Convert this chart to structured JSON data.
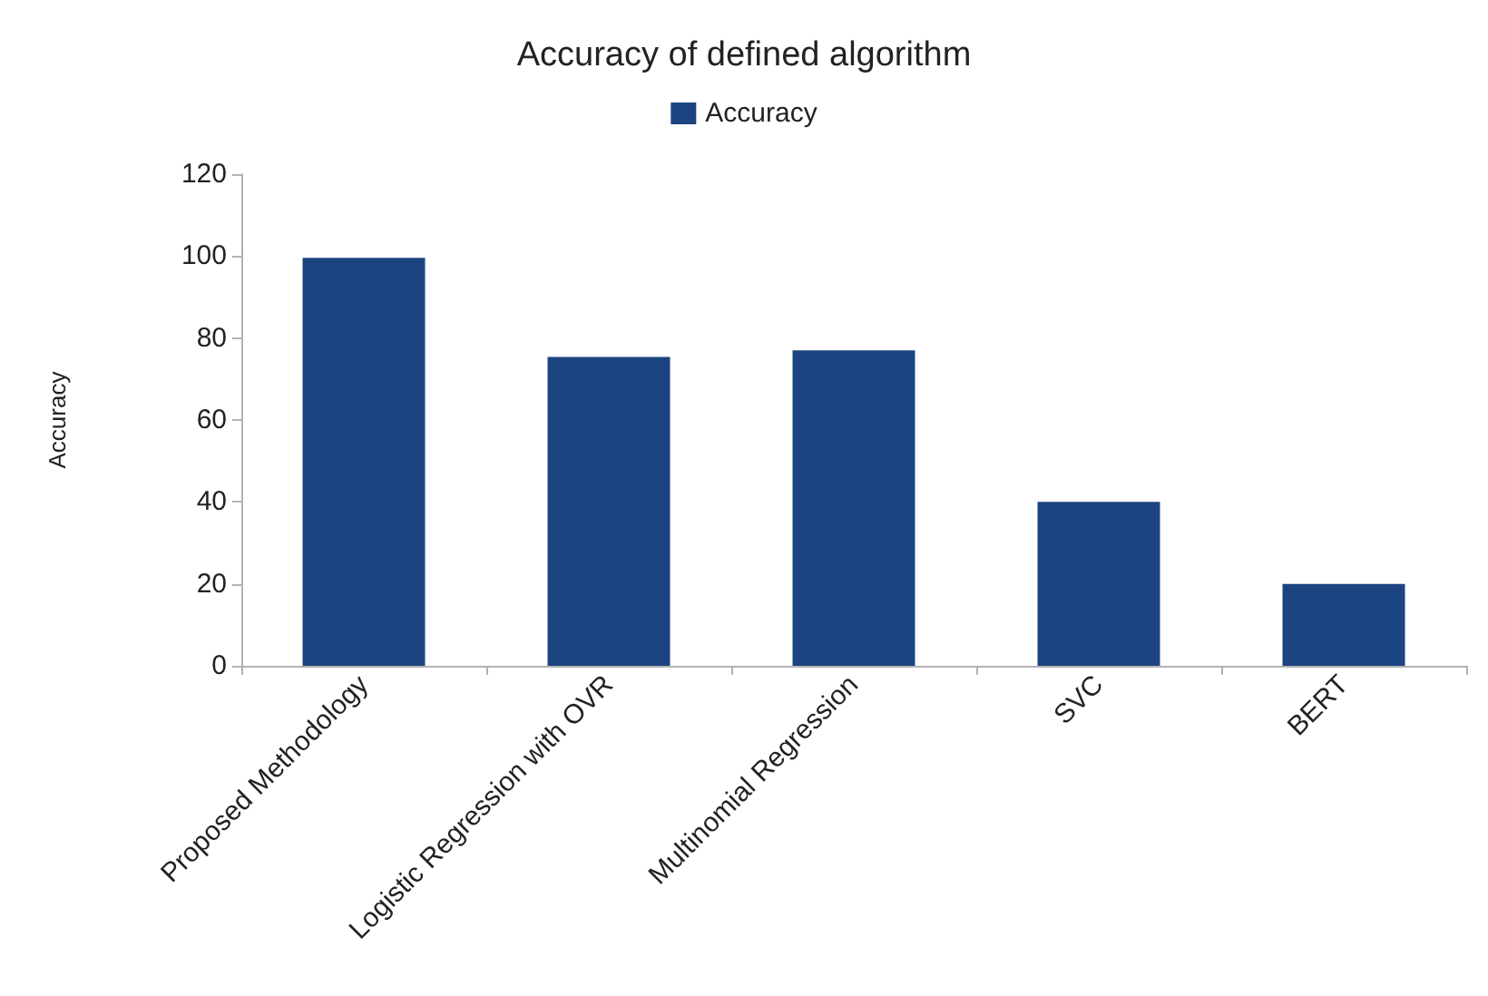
{
  "chart_data": {
    "type": "bar",
    "title": "Accuracy of defined algorithm",
    "ylabel": "Accuracy",
    "categories": [
      "Proposed Methodology",
      "Logistic Regression with OVR",
      "Multinomial Regression",
      "SVC",
      "BERT"
    ],
    "series": [
      {
        "name": "Accuracy",
        "color": "#1c4480",
        "values": [
          99.6,
          75.4,
          77,
          40,
          20
        ]
      }
    ],
    "ylim": [
      0,
      120
    ],
    "yticks": [
      0,
      20,
      40,
      60,
      80,
      100,
      120
    ],
    "grid": false,
    "legend": "top"
  }
}
